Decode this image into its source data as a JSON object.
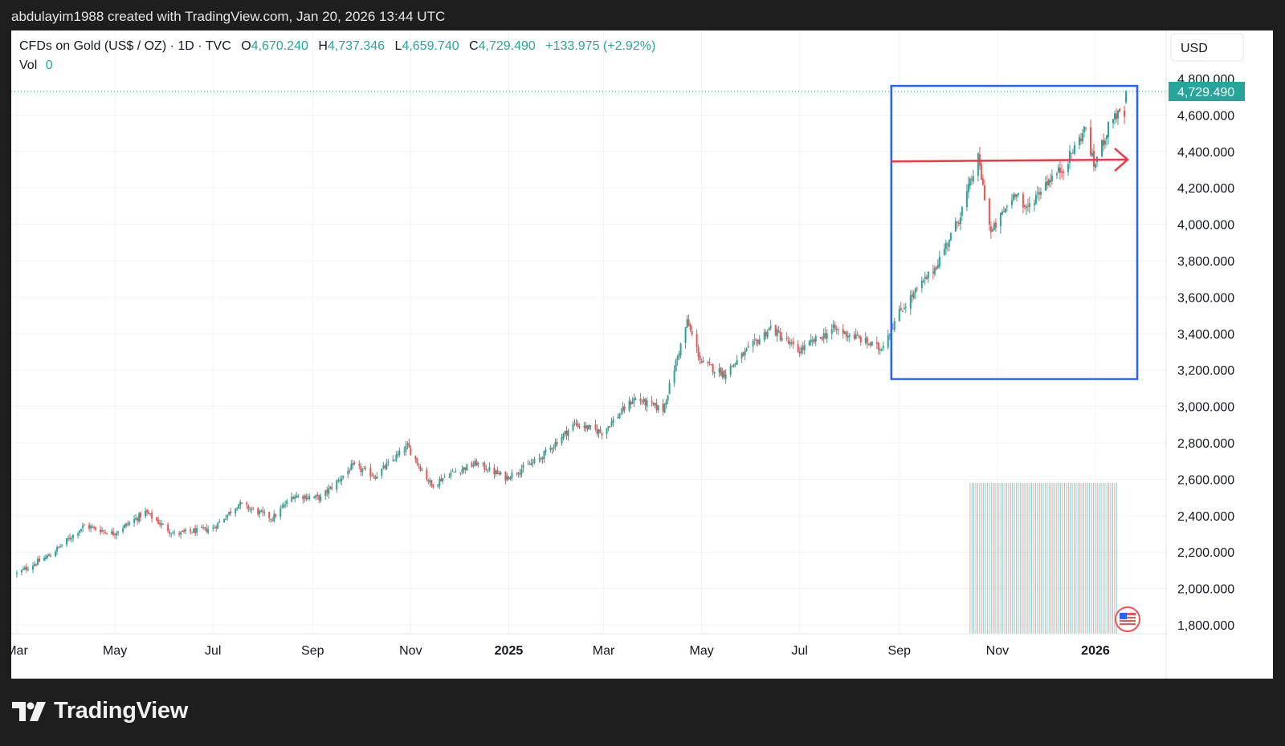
{
  "caption": "abdulayim1988 created with TradingView.com, Jan 20, 2026 13:44 UTC",
  "brand": "TradingView",
  "legend": {
    "symbol": "CFDs on Gold (US$ / OZ)",
    "interval": "1D",
    "source": "TVC",
    "open_label": "O",
    "open": "4,670.240",
    "high_label": "H",
    "high": "4,737.346",
    "low_label": "L",
    "low": "4,659.740",
    "close_label": "C",
    "close": "4,729.490",
    "change": "+133.975 (+2.92%)",
    "vol_label": "Vol",
    "vol": "0"
  },
  "currency": "USD",
  "last_price_label": "4,729.490",
  "colors": {
    "up": "#26a69a",
    "down": "#ef5350",
    "box": "#2962ff",
    "arrow": "#f23645",
    "grid": "#f0f3fa"
  },
  "chart_data": {
    "type": "candlestick",
    "y_axis": {
      "min": 1800,
      "max": 4800,
      "ticks": [
        "4,800.000",
        "4,600.000",
        "4,400.000",
        "4,200.000",
        "4,000.000",
        "3,800.000",
        "3,600.000",
        "3,400.000",
        "3,200.000",
        "3,000.000",
        "2,800.000",
        "2,600.000",
        "2,400.000",
        "2,200.000",
        "2,000.000",
        "1,800.000"
      ]
    },
    "x_axis": {
      "range": [
        "2024-03-01",
        "2026-01-20"
      ],
      "ticks": [
        {
          "label": "Mar",
          "date": "2024-03-01",
          "bold": false
        },
        {
          "label": "May",
          "date": "2024-05-01",
          "bold": false
        },
        {
          "label": "Jul",
          "date": "2024-07-01",
          "bold": false
        },
        {
          "label": "Sep",
          "date": "2024-09-01",
          "bold": false
        },
        {
          "label": "Nov",
          "date": "2024-11-01",
          "bold": false
        },
        {
          "label": "2025",
          "date": "2025-01-01",
          "bold": true
        },
        {
          "label": "Mar",
          "date": "2025-03-01",
          "bold": false
        },
        {
          "label": "May",
          "date": "2025-05-01",
          "bold": false
        },
        {
          "label": "Jul",
          "date": "2025-07-01",
          "bold": false
        },
        {
          "label": "Sep",
          "date": "2025-09-01",
          "bold": false
        },
        {
          "label": "Nov",
          "date": "2025-11-01",
          "bold": false
        },
        {
          "label": "2026",
          "date": "2026-01-01",
          "bold": true
        }
      ]
    },
    "close_path": [
      {
        "date": "2024-03-01",
        "close": 2082
      },
      {
        "date": "2024-03-21",
        "close": 2180
      },
      {
        "date": "2024-04-12",
        "close": 2345
      },
      {
        "date": "2024-04-30",
        "close": 2302
      },
      {
        "date": "2024-05-20",
        "close": 2418
      },
      {
        "date": "2024-06-07",
        "close": 2298
      },
      {
        "date": "2024-07-01",
        "close": 2330
      },
      {
        "date": "2024-07-17",
        "close": 2465
      },
      {
        "date": "2024-08-07",
        "close": 2385
      },
      {
        "date": "2024-08-20",
        "close": 2510
      },
      {
        "date": "2024-09-06",
        "close": 2497
      },
      {
        "date": "2024-09-26",
        "close": 2672
      },
      {
        "date": "2024-10-10",
        "close": 2618
      },
      {
        "date": "2024-10-30",
        "close": 2780
      },
      {
        "date": "2024-11-14",
        "close": 2565
      },
      {
        "date": "2024-11-25",
        "close": 2630
      },
      {
        "date": "2024-12-12",
        "close": 2687
      },
      {
        "date": "2024-12-30",
        "close": 2608
      },
      {
        "date": "2025-01-20",
        "close": 2710
      },
      {
        "date": "2025-02-11",
        "close": 2905
      },
      {
        "date": "2025-02-28",
        "close": 2858
      },
      {
        "date": "2025-03-20",
        "close": 3042
      },
      {
        "date": "2025-04-07",
        "close": 2982
      },
      {
        "date": "2025-04-22",
        "close": 3465
      },
      {
        "date": "2025-05-01",
        "close": 3238
      },
      {
        "date": "2025-05-15",
        "close": 3180
      },
      {
        "date": "2025-06-13",
        "close": 3432
      },
      {
        "date": "2025-06-30",
        "close": 3302
      },
      {
        "date": "2025-07-22",
        "close": 3425
      },
      {
        "date": "2025-08-05",
        "close": 3380
      },
      {
        "date": "2025-08-20",
        "close": 3315
      },
      {
        "date": "2025-09-02",
        "close": 3530
      },
      {
        "date": "2025-09-23",
        "close": 3760
      },
      {
        "date": "2025-10-08",
        "close": 4030
      },
      {
        "date": "2025-10-20",
        "close": 4360
      },
      {
        "date": "2025-10-28",
        "close": 3950
      },
      {
        "date": "2025-11-13",
        "close": 4190
      },
      {
        "date": "2025-11-18",
        "close": 4070
      },
      {
        "date": "2025-12-01",
        "close": 4230
      },
      {
        "date": "2025-12-12",
        "close": 4310
      },
      {
        "date": "2025-12-26",
        "close": 4530
      },
      {
        "date": "2025-12-31",
        "close": 4320
      },
      {
        "date": "2026-01-12",
        "close": 4600
      },
      {
        "date": "2026-01-19",
        "close": 4595
      },
      {
        "date": "2026-01-20",
        "close": 4729.49
      }
    ],
    "last_bar": {
      "date": "2026-01-20",
      "open": 4670.24,
      "high": 4737.346,
      "low": 4659.74,
      "close": 4729.49
    },
    "annotations": {
      "box": {
        "start": "2025-08-27",
        "end": "2026-01-27",
        "top": 4760,
        "bottom": 3150
      },
      "arrow": {
        "start": "2025-08-27",
        "end": "2026-01-27",
        "price_start": 4345,
        "price_end": 4355
      },
      "price_line": 4729.49
    },
    "volume_band": {
      "start": "2025-10-15",
      "end": "2026-01-15"
    }
  }
}
